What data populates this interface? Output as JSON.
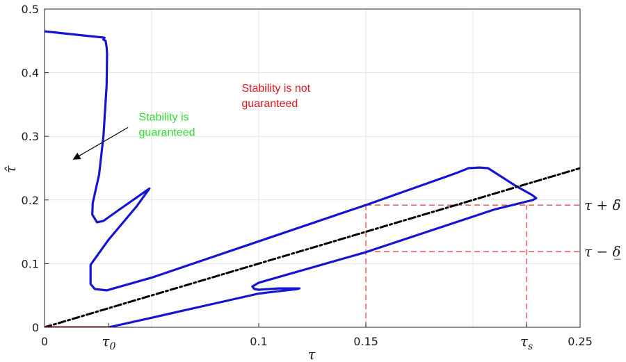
{
  "chart_data": {
    "type": "line",
    "xlabel": "τ",
    "ylabel": "τ̂",
    "xlim": [
      0,
      0.25
    ],
    "ylim": [
      0,
      0.5
    ],
    "grid": true,
    "x_ticks": [
      {
        "value": 0,
        "label": "0"
      },
      {
        "value": 0.1,
        "label": "0.1"
      },
      {
        "value": 0.15,
        "label": "0.15"
      },
      {
        "value": 0.25,
        "label": "0.25"
      }
    ],
    "x_grid": [
      0.05,
      0.1,
      0.15,
      0.2,
      0.25
    ],
    "y_ticks": [
      {
        "value": 0,
        "label": "0"
      },
      {
        "value": 0.1,
        "label": "0.1"
      },
      {
        "value": 0.2,
        "label": "0.2"
      },
      {
        "value": 0.3,
        "label": "0.3"
      },
      {
        "value": 0.4,
        "label": "0.4"
      },
      {
        "value": 0.5,
        "label": "0.5"
      }
    ],
    "special_x_labels": [
      {
        "value": 0.03,
        "base": "τ",
        "sub": "0"
      },
      {
        "value": 0.225,
        "base": "τ",
        "sub": "s"
      }
    ],
    "series": [
      {
        "role": "stability-boundary",
        "color": "#1414d2",
        "style": "solid",
        "points": [
          [
            0.0,
            0.465
          ],
          [
            0.028,
            0.455
          ],
          [
            0.0275,
            0.452
          ],
          [
            0.0285,
            0.45
          ],
          [
            0.029,
            0.44
          ],
          [
            0.0292,
            0.43
          ],
          [
            0.029,
            0.38
          ],
          [
            0.0275,
            0.3
          ],
          [
            0.0255,
            0.24
          ],
          [
            0.0225,
            0.195
          ],
          [
            0.0223,
            0.177
          ],
          [
            0.0245,
            0.165
          ],
          [
            0.0275,
            0.167
          ],
          [
            0.035,
            0.185
          ],
          [
            0.049,
            0.218
          ],
          [
            0.043,
            0.19
          ],
          [
            0.03,
            0.138
          ],
          [
            0.0215,
            0.098
          ],
          [
            0.0215,
            0.068
          ],
          [
            0.0235,
            0.06
          ],
          [
            0.029,
            0.058
          ],
          [
            0.05,
            0.078
          ],
          [
            0.1,
            0.135
          ],
          [
            0.15,
            0.192
          ],
          [
            0.192,
            0.242
          ],
          [
            0.198,
            0.25
          ],
          [
            0.203,
            0.251
          ],
          [
            0.207,
            0.25
          ],
          [
            0.2195,
            0.223
          ],
          [
            0.2275,
            0.208
          ],
          [
            0.2295,
            0.203
          ],
          [
            0.228,
            0.2
          ],
          [
            0.21,
            0.185
          ],
          [
            0.15,
            0.118
          ],
          [
            0.1,
            0.07
          ],
          [
            0.097,
            0.064
          ],
          [
            0.098,
            0.06
          ],
          [
            0.1,
            0.059
          ],
          [
            0.109,
            0.061
          ],
          [
            0.119,
            0.061
          ],
          [
            0.118,
            0.06
          ],
          [
            0.1,
            0.053
          ],
          [
            0.05,
            0.015
          ],
          [
            0.03,
            0.0
          ]
        ]
      },
      {
        "role": "identity",
        "color": "#000000",
        "style": "dashdot",
        "points": [
          [
            0,
            0
          ],
          [
            0.25,
            0.25
          ]
        ]
      },
      {
        "role": "tau0-segment",
        "color": "#8b1a1a",
        "style": "solid",
        "points": [
          [
            0,
            0
          ],
          [
            0.03,
            0
          ]
        ]
      }
    ],
    "reference_lines": {
      "color": "#e8323c",
      "segments": [
        [
          [
            0.15,
            0
          ],
          [
            0.15,
            0.192
          ]
        ],
        [
          [
            0.225,
            0
          ],
          [
            0.225,
            0.192
          ]
        ],
        [
          [
            0.15,
            0.192
          ],
          [
            0.25,
            0.192
          ]
        ],
        [
          [
            0.15,
            0.119
          ],
          [
            0.25,
            0.119
          ]
        ]
      ]
    },
    "right_labels": [
      {
        "y": 0.192,
        "text": "τ + δ̄"
      },
      {
        "y": 0.119,
        "text": "τ − δ̲"
      }
    ],
    "annotations": [
      {
        "id": "guaranteed",
        "lines": [
          "Stability is",
          "guaranteed"
        ],
        "color": "#2fd92f",
        "x": 0.044,
        "y": 0.325
      },
      {
        "id": "not-guaranteed",
        "lines": [
          "Stability is not",
          "guaranteed"
        ],
        "color": "#e0141e",
        "x": 0.092,
        "y": 0.37
      }
    ],
    "arrow": {
      "from": [
        0.039,
        0.314
      ],
      "to": [
        0.0135,
        0.264
      ]
    }
  }
}
